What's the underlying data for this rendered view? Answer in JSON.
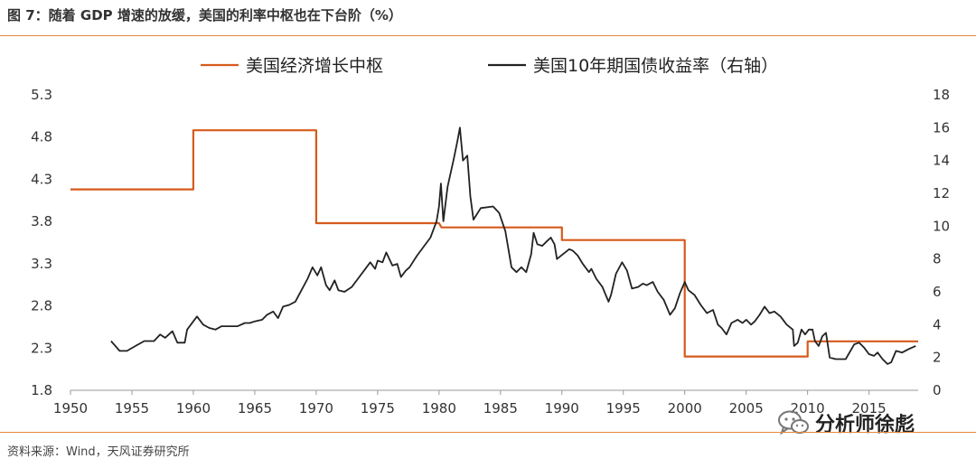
{
  "header": {
    "title": "图 7：随着 GDP 增速的放缓，美国的利率中枢也在下台阶（%）"
  },
  "footer": {
    "source": "资料来源：Wind，天风证券研究所"
  },
  "watermark": {
    "text": "分析师徐彪",
    "icon": "wechat-icon"
  },
  "colors": {
    "gdp": "#d65a1c",
    "yield": "#222222",
    "rule": "#e3873b"
  },
  "chart_data": {
    "type": "line",
    "title": "",
    "xlabel": "",
    "ylabel": "",
    "y2label": "",
    "xlim": [
      1950,
      2019
    ],
    "xticks": [
      "1950",
      "1955",
      "1960",
      "1965",
      "1970",
      "1975",
      "1980",
      "1985",
      "1990",
      "1995",
      "2000",
      "2005",
      "2010",
      "2015"
    ],
    "ylim": [
      1.8,
      5.3
    ],
    "yticks": [
      "1.8",
      "2.3",
      "2.8",
      "3.3",
      "3.8",
      "4.3",
      "4.8",
      "5.3"
    ],
    "y2lim": [
      0,
      18
    ],
    "y2ticks": [
      "0",
      "2",
      "4",
      "6",
      "8",
      "10",
      "12",
      "14",
      "16",
      "18"
    ],
    "legend_position": "top",
    "grid": false,
    "series": [
      {
        "name": "美国经济增长中枢",
        "axis": "left",
        "color": "#d65a1c",
        "points": [
          [
            1950,
            4.18
          ],
          [
            1960,
            4.18
          ],
          [
            1960,
            4.88
          ],
          [
            1970,
            4.88
          ],
          [
            1970,
            3.78
          ],
          [
            1980,
            3.78
          ],
          [
            1980.2,
            3.73
          ],
          [
            1990,
            3.73
          ],
          [
            1990,
            3.58
          ],
          [
            2000,
            3.58
          ],
          [
            2000,
            2.2
          ],
          [
            2010,
            2.2
          ],
          [
            2010,
            2.38
          ],
          [
            2019,
            2.38
          ]
        ]
      },
      {
        "name": "美国10年期国债收益率（右轴）",
        "axis": "right",
        "color": "#222222",
        "points": [
          [
            1953.3,
            3.0
          ],
          [
            1954,
            2.4
          ],
          [
            1954.6,
            2.4
          ],
          [
            1955.3,
            2.7
          ],
          [
            1956,
            3.0
          ],
          [
            1956.8,
            3.0
          ],
          [
            1957.3,
            3.4
          ],
          [
            1957.7,
            3.2
          ],
          [
            1958.3,
            3.6
          ],
          [
            1958.7,
            2.9
          ],
          [
            1959.3,
            2.9
          ],
          [
            1959.5,
            3.7
          ],
          [
            1960,
            4.2
          ],
          [
            1960.3,
            4.5
          ],
          [
            1960.8,
            4.0
          ],
          [
            1961.3,
            3.8
          ],
          [
            1961.8,
            3.7
          ],
          [
            1962.3,
            3.9
          ],
          [
            1963,
            3.9
          ],
          [
            1963.6,
            3.9
          ],
          [
            1964.2,
            4.1
          ],
          [
            1964.6,
            4.1
          ],
          [
            1965,
            4.2
          ],
          [
            1965.6,
            4.3
          ],
          [
            1966,
            4.6
          ],
          [
            1966.5,
            4.8
          ],
          [
            1966.9,
            4.4
          ],
          [
            1967.3,
            5.1
          ],
          [
            1967.8,
            5.2
          ],
          [
            1968.3,
            5.4
          ],
          [
            1968.8,
            6.1
          ],
          [
            1969.3,
            6.8
          ],
          [
            1969.7,
            7.5
          ],
          [
            1970.1,
            7.0
          ],
          [
            1970.4,
            7.5
          ],
          [
            1970.8,
            6.4
          ],
          [
            1971.1,
            6.1
          ],
          [
            1971.5,
            6.7
          ],
          [
            1971.8,
            6.1
          ],
          [
            1972.3,
            6.0
          ],
          [
            1972.9,
            6.3
          ],
          [
            1973.4,
            6.8
          ],
          [
            1973.9,
            7.3
          ],
          [
            1974.4,
            7.8
          ],
          [
            1974.8,
            7.4
          ],
          [
            1975,
            7.9
          ],
          [
            1975.4,
            7.8
          ],
          [
            1975.7,
            8.4
          ],
          [
            1976.2,
            7.6
          ],
          [
            1976.6,
            7.7
          ],
          [
            1976.9,
            6.9
          ],
          [
            1977.3,
            7.3
          ],
          [
            1977.6,
            7.5
          ],
          [
            1978.2,
            8.2
          ],
          [
            1978.8,
            8.8
          ],
          [
            1979.3,
            9.3
          ],
          [
            1979.8,
            10.3
          ],
          [
            1980,
            11.2
          ],
          [
            1980.15,
            12.6
          ],
          [
            1980.35,
            10.3
          ],
          [
            1980.7,
            12.4
          ],
          [
            1981.2,
            14.1
          ],
          [
            1981.5,
            15.2
          ],
          [
            1981.7,
            16.0
          ],
          [
            1981.95,
            14.0
          ],
          [
            1982.3,
            14.3
          ],
          [
            1982.55,
            11.8
          ],
          [
            1982.8,
            10.4
          ],
          [
            1983.4,
            11.1
          ],
          [
            1984.4,
            11.2
          ],
          [
            1984.9,
            10.8
          ],
          [
            1985.4,
            9.7
          ],
          [
            1985.9,
            7.5
          ],
          [
            1986.3,
            7.2
          ],
          [
            1986.7,
            7.5
          ],
          [
            1987.1,
            7.2
          ],
          [
            1987.5,
            8.3
          ],
          [
            1987.7,
            9.6
          ],
          [
            1988,
            8.9
          ],
          [
            1988.4,
            8.8
          ],
          [
            1988.8,
            9.1
          ],
          [
            1989.1,
            9.3
          ],
          [
            1989.4,
            8.9
          ],
          [
            1989.6,
            8.0
          ],
          [
            1990.1,
            8.3
          ],
          [
            1990.6,
            8.6
          ],
          [
            1990.9,
            8.5
          ],
          [
            1991.3,
            8.2
          ],
          [
            1991.7,
            7.7
          ],
          [
            1992.2,
            7.2
          ],
          [
            1992.4,
            7.4
          ],
          [
            1992.8,
            6.8
          ],
          [
            1993.3,
            6.3
          ],
          [
            1993.8,
            5.4
          ],
          [
            1994,
            5.8
          ],
          [
            1994.4,
            7.1
          ],
          [
            1994.9,
            7.8
          ],
          [
            1995.3,
            7.3
          ],
          [
            1995.7,
            6.2
          ],
          [
            1996.2,
            6.3
          ],
          [
            1996.6,
            6.5
          ],
          [
            1996.9,
            6.4
          ],
          [
            1997.4,
            6.6
          ],
          [
            1997.8,
            6.0
          ],
          [
            1998.3,
            5.5
          ],
          [
            1998.8,
            4.6
          ],
          [
            1999.2,
            5.0
          ],
          [
            1999.6,
            5.9
          ],
          [
            2000,
            6.6
          ],
          [
            2000.3,
            6.1
          ],
          [
            2000.8,
            5.8
          ],
          [
            2001.3,
            5.2
          ],
          [
            2001.8,
            4.7
          ],
          [
            2002.3,
            4.9
          ],
          [
            2002.7,
            4.0
          ],
          [
            2003,
            3.8
          ],
          [
            2003.4,
            3.4
          ],
          [
            2003.8,
            4.1
          ],
          [
            2004.3,
            4.3
          ],
          [
            2004.7,
            4.1
          ],
          [
            2005,
            4.3
          ],
          [
            2005.4,
            4.0
          ],
          [
            2005.7,
            4.2
          ],
          [
            2006.1,
            4.6
          ],
          [
            2006.5,
            5.1
          ],
          [
            2006.9,
            4.7
          ],
          [
            2007.3,
            4.8
          ],
          [
            2007.8,
            4.5
          ],
          [
            2008.3,
            4.0
          ],
          [
            2008.8,
            3.7
          ],
          [
            2008.9,
            2.7
          ],
          [
            2009.2,
            2.9
          ],
          [
            2009.5,
            3.7
          ],
          [
            2009.8,
            3.4
          ],
          [
            2010.1,
            3.7
          ],
          [
            2010.4,
            3.7
          ],
          [
            2010.6,
            3.0
          ],
          [
            2010.9,
            2.7
          ],
          [
            2011.2,
            3.3
          ],
          [
            2011.5,
            3.5
          ],
          [
            2011.8,
            2.0
          ],
          [
            2012.3,
            1.9
          ],
          [
            2013.1,
            1.9
          ],
          [
            2013.8,
            2.8
          ],
          [
            2014.2,
            2.9
          ],
          [
            2014.6,
            2.6
          ],
          [
            2015,
            2.2
          ],
          [
            2015.4,
            2.1
          ],
          [
            2015.7,
            2.3
          ],
          [
            2016.1,
            1.9
          ],
          [
            2016.5,
            1.6
          ],
          [
            2016.8,
            1.7
          ],
          [
            2017.2,
            2.4
          ],
          [
            2017.7,
            2.3
          ],
          [
            2018.2,
            2.5
          ],
          [
            2018.8,
            2.7
          ]
        ]
      }
    ]
  }
}
